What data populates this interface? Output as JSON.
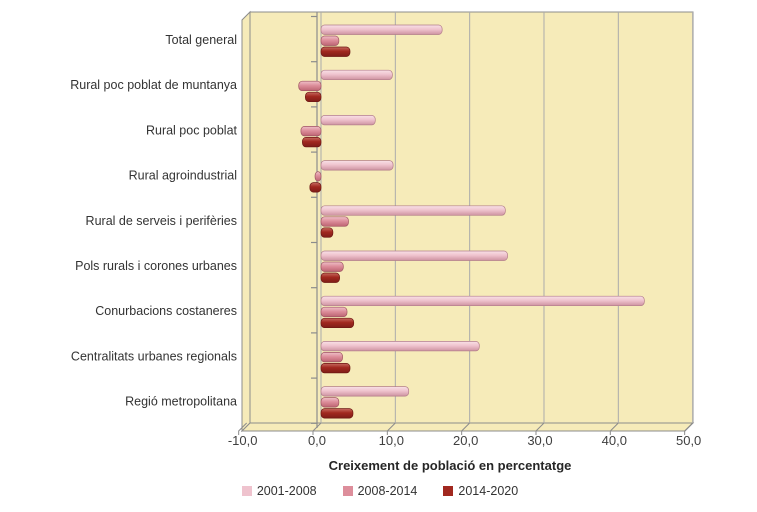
{
  "chart_data": {
    "type": "bar",
    "orientation": "horizontal",
    "title": "",
    "xlabel": "Creixement de població en percentatge",
    "xlim": [
      -10,
      50
    ],
    "xtick_step": 10,
    "tick_labels": [
      "-10,0",
      "0,0",
      "10,0",
      "20,0",
      "30,0",
      "40,0",
      "50,0"
    ],
    "grid": true,
    "legend_position": "bottom",
    "plot_bg_color": "#F6EBB9",
    "grid_color": "#ABABAB",
    "wall_stroke_color": "#8C8C8C",
    "text_color": "#333333",
    "categories": [
      "Total general",
      "Rural poc poblat de muntanya",
      "Rural poc poblat",
      "Rural agroindustrial",
      "Rural de serveis i perifèries",
      "Pols rurals i corones urbanes",
      "Conurbacions costaneres",
      "Centralitats urbanes regionals",
      "Regió metropolitana"
    ],
    "series": [
      {
        "name": "2001-2008",
        "color": "#EFC3CE",
        "color_top": "#F8E0E6",
        "color_bottom": "#CE93A1",
        "stroke": "#B37E8B",
        "values": [
          16.3,
          9.6,
          7.3,
          9.7,
          24.8,
          25.1,
          43.5,
          21.3,
          11.8
        ]
      },
      {
        "name": "2008-2014",
        "color": "#DD8E9B",
        "color_top": "#EFC0C8",
        "color_bottom": "#BD6472",
        "stroke": "#A05563",
        "values": [
          2.4,
          -3.0,
          -2.7,
          -0.8,
          3.7,
          3.0,
          3.5,
          2.9,
          2.4
        ]
      },
      {
        "name": "2014-2020",
        "color": "#A1281F",
        "color_top": "#C76A60",
        "color_bottom": "#7E1D18",
        "stroke": "#6E1812",
        "values": [
          3.9,
          -2.1,
          -2.5,
          -1.5,
          1.6,
          2.5,
          4.4,
          3.9,
          4.3
        ]
      }
    ]
  }
}
